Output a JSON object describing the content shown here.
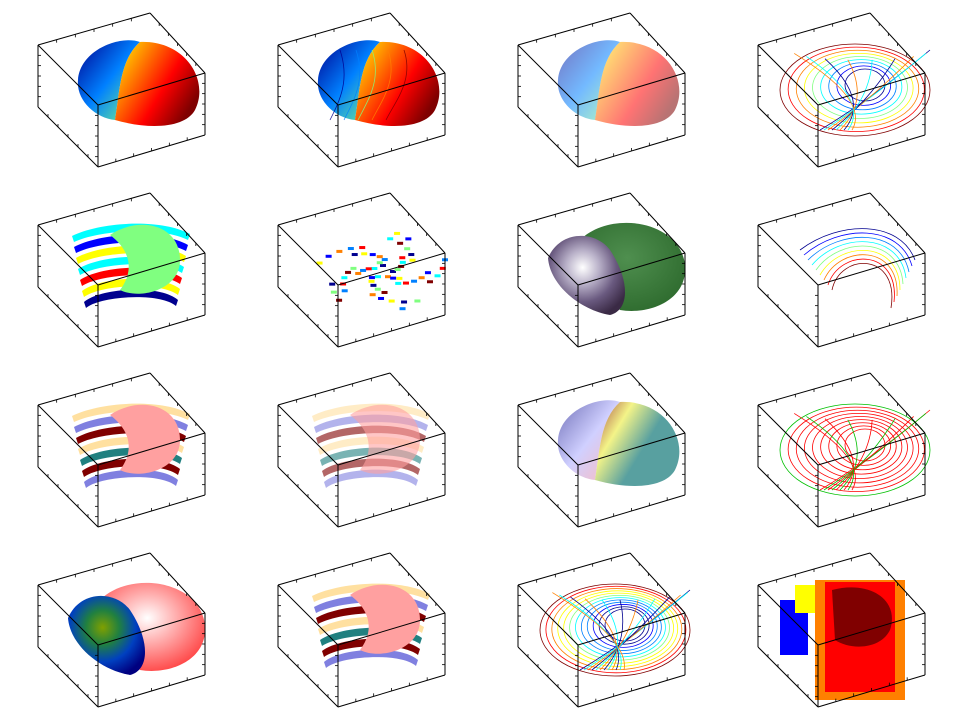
{
  "chart_data": {
    "type": "surface3d-grid",
    "title": "",
    "rows": 4,
    "cols": 4,
    "ticks_per_edge": 5,
    "panels": [
      {
        "row": 0,
        "col": 0,
        "style": "surf",
        "colormap": "jet",
        "alpha": 1
      },
      {
        "row": 0,
        "col": 1,
        "style": "surf-striped",
        "colormap": "jet",
        "alpha": 1
      },
      {
        "row": 0,
        "col": 2,
        "style": "surf-transparent",
        "colormap": "jet",
        "alpha": 0.55
      },
      {
        "row": 0,
        "col": 3,
        "style": "mesh",
        "colormap": "jet",
        "alpha": 1
      },
      {
        "row": 1,
        "col": 0,
        "style": "bands",
        "colormap": "jet",
        "alpha": 1
      },
      {
        "row": 1,
        "col": 1,
        "style": "dots",
        "colormap": "jet",
        "alpha": 1
      },
      {
        "row": 1,
        "col": 2,
        "style": "surf-lit",
        "colormap": "green",
        "alpha": 1
      },
      {
        "row": 1,
        "col": 3,
        "style": "lines",
        "colormap": "jet",
        "alpha": 1
      },
      {
        "row": 2,
        "col": 0,
        "style": "bands",
        "colormap": "pastel",
        "alpha": 1
      },
      {
        "row": 2,
        "col": 1,
        "style": "bands",
        "colormap": "pastel",
        "alpha": 0.6
      },
      {
        "row": 2,
        "col": 2,
        "style": "surf-transparent",
        "colormap": "pastel",
        "alpha": 0.75
      },
      {
        "row": 2,
        "col": 3,
        "style": "mesh",
        "colormap": "redgreen",
        "alpha": 1
      },
      {
        "row": 3,
        "col": 0,
        "style": "surf-lit",
        "colormap": "rainbow",
        "alpha": 1
      },
      {
        "row": 3,
        "col": 1,
        "style": "bands",
        "colormap": "pastel",
        "alpha": 1
      },
      {
        "row": 3,
        "col": 2,
        "style": "mesh-dense",
        "colormap": "jet",
        "alpha": 1
      },
      {
        "row": 3,
        "col": 3,
        "style": "contourf",
        "colormap": "jet",
        "alpha": 1
      }
    ],
    "colors": {
      "jet": [
        "#00008f",
        "#0000ff",
        "#0080ff",
        "#00ffff",
        "#80ff80",
        "#ffff00",
        "#ff8000",
        "#ff0000",
        "#800000"
      ],
      "green": [
        "#3a2a45",
        "#6a5a80",
        "#b8b0c8",
        "#ffffff",
        "#2e6b2e",
        "#4f8f4f"
      ],
      "pastel": [
        "#4040a0",
        "#8080e0",
        "#c0c0ff",
        "#ffe0a0",
        "#ffa0a0",
        "#800000",
        "#f0f060",
        "#208080"
      ],
      "redgreen": [
        "#ff0000",
        "#00c000"
      ],
      "rainbow": [
        "#000080",
        "#0040c0",
        "#208040",
        "#80a000",
        "#c08000",
        "#ff4040",
        "#ffffff"
      ]
    }
  }
}
